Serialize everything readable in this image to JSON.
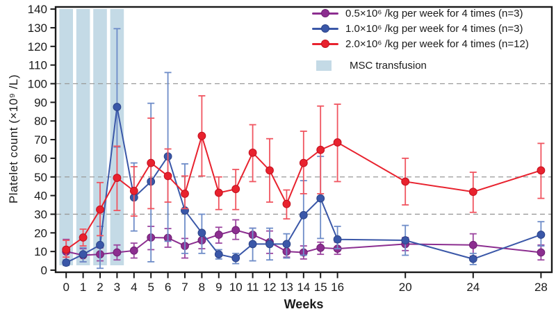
{
  "figure": {
    "background": "#ffffff",
    "axis_color": "#1a1a1a",
    "grid_color": "#999999"
  },
  "chart_data": {
    "type": "line",
    "title": "",
    "xlabel": "Weeks",
    "ylabel": "Platelet count (×10⁹ /L)",
    "ylim": [
      0,
      141
    ],
    "xlim": [
      0,
      28
    ],
    "grid": "horizontal dashed lines at y = 30, 50, 100",
    "grid_y_values": [
      30,
      50,
      100
    ],
    "yticks": [
      0,
      10,
      20,
      30,
      40,
      50,
      60,
      70,
      80,
      90,
      100,
      110,
      120,
      130,
      140
    ],
    "xticks": [
      0,
      1,
      2,
      3,
      4,
      5,
      6,
      7,
      8,
      9,
      10,
      11,
      12,
      13,
      14,
      15,
      16,
      20,
      24,
      28
    ],
    "x": [
      0,
      1,
      2,
      3,
      4,
      5,
      6,
      7,
      8,
      9,
      10,
      11,
      12,
      13,
      14,
      15,
      16,
      20,
      24,
      28
    ],
    "legend_position": "top-right inside plot",
    "msc_bands": {
      "label": "MSC transfusion",
      "color": "#C4DAE6",
      "weeks": [
        0,
        1,
        2,
        3
      ]
    },
    "series": [
      {
        "key": "dose-0.5e6",
        "name": "0.5×10⁶ /kg per week for 4 times (n=3)",
        "color": "#8C2E90",
        "edge": "#6E2173",
        "err_color": "#9C46A0",
        "values": [
          10,
          8,
          8.5,
          9.5,
          10.5,
          17.5,
          17.3,
          13,
          16,
          19,
          21.5,
          19,
          15,
          10,
          9.5,
          12,
          11.5,
          14,
          13.5,
          9.5
        ],
        "err_up": [
          6.5,
          3.5,
          3.5,
          4,
          4,
          6,
          5,
          4,
          3,
          4,
          5.5,
          3.5,
          6,
          3,
          3.5,
          3,
          3.5,
          3.5,
          6,
          4
        ],
        "err_down": [
          6.5,
          3.5,
          3.5,
          4,
          4,
          6.5,
          5,
          6.5,
          4.5,
          4.5,
          5,
          4,
          6,
          3,
          3.5,
          3.5,
          3,
          3.5,
          6,
          4
        ]
      },
      {
        "key": "dose-1.0e6",
        "name": "1.0×10⁶ /kg per week for 4 times (n=3)",
        "color": "#3A57A8",
        "edge": "#2C4489",
        "err_color": "#6E8CC8",
        "values": [
          4,
          8.5,
          13.5,
          87.5,
          39,
          47.5,
          61,
          32,
          20,
          8.5,
          6.5,
          14,
          14,
          14,
          29.5,
          38.5,
          16.5,
          16,
          6,
          19
        ],
        "err_up": [
          1.5,
          3.5,
          10,
          42,
          18.5,
          42,
          45,
          25,
          10,
          2.5,
          2.5,
          8.5,
          8.5,
          5.5,
          18.5,
          22.5,
          7,
          8,
          3,
          7
        ],
        "err_down": [
          1.5,
          4,
          12.5,
          21.5,
          18,
          43,
          45.5,
          23,
          11,
          2.5,
          3,
          9,
          8.5,
          7.5,
          21.5,
          21.5,
          5,
          8,
          3,
          6
        ]
      },
      {
        "key": "dose-2.0e6",
        "name": "2.0×10⁶ /kg per week for 4 times (n=12)",
        "color": "#E8222E",
        "edge": "#C4101E",
        "err_color": "#F05560",
        "values": [
          11,
          17.5,
          32.5,
          49.5,
          42.5,
          57.5,
          50.5,
          41,
          72,
          41.5,
          43.5,
          63,
          53.5,
          35.5,
          57.5,
          64.5,
          68.5,
          47.5,
          42,
          53.5
        ],
        "err_up": [
          5,
          4.5,
          14.5,
          17,
          13,
          24,
          14.5,
          9.5,
          21.5,
          8.5,
          10.5,
          15,
          17,
          7.5,
          17,
          23.5,
          20.5,
          12.5,
          10.5,
          14.5
        ],
        "err_down": [
          4,
          4.5,
          14,
          17.5,
          13.5,
          24.5,
          14,
          8,
          21.5,
          9,
          11,
          15.5,
          17,
          8,
          16.5,
          23.5,
          21,
          12.5,
          11,
          15
        ]
      }
    ]
  }
}
